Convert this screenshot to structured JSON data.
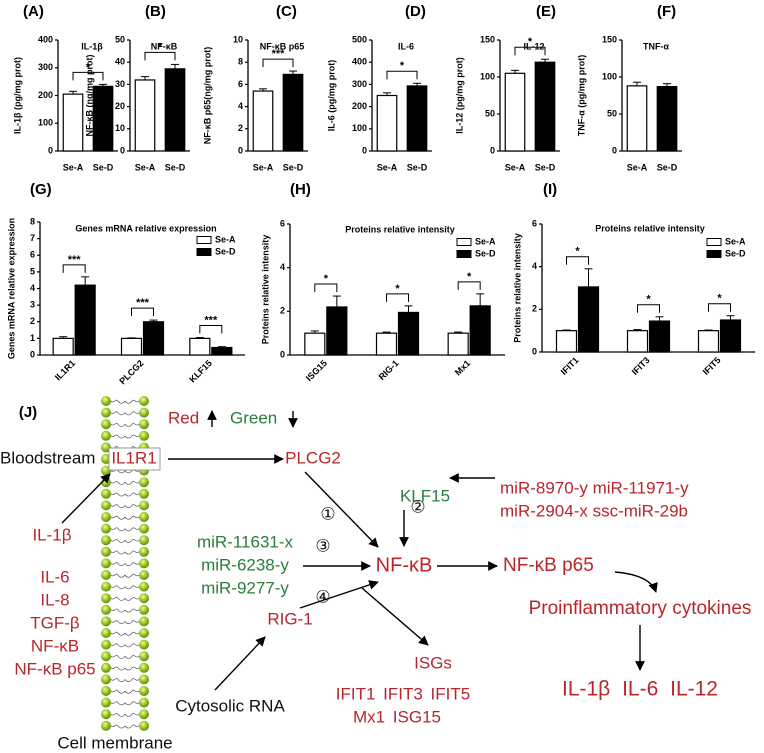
{
  "chart_data": [
    {
      "type": "bar",
      "panel_label": "(A)",
      "title": "IL-1β",
      "y_label": "IL-1β (pg/mg prot)",
      "categories": [
        "Se-A",
        "Se-D"
      ],
      "values": [
        205,
        233
      ],
      "errors": [
        10,
        7
      ],
      "colors": [
        "#ffffff",
        "#000000"
      ],
      "ylim": [
        0,
        400
      ],
      "yticks": [
        0,
        100,
        200,
        300,
        400
      ],
      "significance": "*"
    },
    {
      "type": "bar",
      "panel_label": "(B)",
      "title": "NF-κB",
      "y_label": "NF-κB (ng/mg prot)",
      "categories": [
        "Se-A",
        "Se-D"
      ],
      "values": [
        32,
        37
      ],
      "errors": [
        1.5,
        2
      ],
      "colors": [
        "#ffffff",
        "#000000"
      ],
      "ylim": [
        0,
        50
      ],
      "yticks": [
        0,
        10,
        20,
        30,
        40,
        50
      ],
      "significance": "*"
    },
    {
      "type": "bar",
      "panel_label": "(C)",
      "title": "NF-κB p65",
      "y_label": "NF-κB p65(ng/mg prot)",
      "categories": [
        "Se-A",
        "Se-D"
      ],
      "values": [
        5.4,
        6.9
      ],
      "errors": [
        0.2,
        0.3
      ],
      "colors": [
        "#ffffff",
        "#000000"
      ],
      "ylim": [
        0,
        10
      ],
      "yticks": [
        0,
        2,
        4,
        6,
        8,
        10
      ],
      "significance": "***"
    },
    {
      "type": "bar",
      "panel_label": "(D)",
      "title": "IL-6",
      "y_label": "IL-6 (pg/mg prot)",
      "categories": [
        "Se-A",
        "Se-D"
      ],
      "values": [
        250,
        293
      ],
      "errors": [
        12,
        12
      ],
      "colors": [
        "#ffffff",
        "#000000"
      ],
      "ylim": [
        0,
        500
      ],
      "yticks": [
        0,
        100,
        200,
        300,
        400,
        500
      ],
      "significance": "*"
    },
    {
      "type": "bar",
      "panel_label": "(E)",
      "title": "IL-12",
      "y_label": "IL-12 (pg/mg prot)",
      "categories": [
        "Se-A",
        "Se-D"
      ],
      "values": [
        105,
        120
      ],
      "errors": [
        4,
        4
      ],
      "colors": [
        "#ffffff",
        "#000000"
      ],
      "ylim": [
        0,
        150
      ],
      "yticks": [
        0,
        50,
        100,
        150
      ],
      "significance": "*"
    },
    {
      "type": "bar",
      "panel_label": "(F)",
      "title": "TNF-α",
      "y_label": "TNF-α (pg/mg prot)",
      "categories": [
        "Se-A",
        "Se-D"
      ],
      "values": [
        88,
        87
      ],
      "errors": [
        5,
        4
      ],
      "colors": [
        "#ffffff",
        "#000000"
      ],
      "ylim": [
        0,
        150
      ],
      "yticks": [
        0,
        50,
        100,
        150
      ]
    },
    {
      "type": "grouped_bar",
      "panel_label": "(G)",
      "title": "Genes mRNA relative expression",
      "y_label": "Genes mRNA relative expression",
      "categories": [
        "IL1R1",
        "PLCG2",
        "KLF15"
      ],
      "series": [
        {
          "name": "Se-A",
          "color": "#ffffff",
          "values": [
            1,
            1,
            1
          ],
          "errors": [
            0.1,
            0.03,
            0.05
          ]
        },
        {
          "name": "Se-D",
          "color": "#000000",
          "values": [
            4.2,
            2.0,
            0.45
          ],
          "errors": [
            0.5,
            0.1,
            0.05
          ]
        }
      ],
      "ylim": [
        0,
        8
      ],
      "yticks": [
        0,
        1,
        2,
        3,
        4,
        5,
        6,
        7,
        8
      ],
      "significance": [
        "***",
        "***",
        "***"
      ],
      "legend": "upper right"
    },
    {
      "type": "grouped_bar",
      "panel_label": "(H)",
      "title": "Proteins relative intensity",
      "y_label": "Proteins relative intensity",
      "categories": [
        "ISG15",
        "RIG-1",
        "Mx1"
      ],
      "series": [
        {
          "name": "Se-A",
          "color": "#ffffff",
          "values": [
            1,
            1,
            1
          ],
          "errors": [
            0.1,
            0.05,
            0.05
          ]
        },
        {
          "name": "Se-D",
          "color": "#000000",
          "values": [
            2.2,
            1.95,
            2.25
          ],
          "errors": [
            0.5,
            0.3,
            0.55
          ]
        }
      ],
      "ylim": [
        0,
        6
      ],
      "yticks": [
        0,
        2,
        4,
        6
      ],
      "significance": [
        "*",
        "*",
        "*"
      ],
      "legend": "upper right"
    },
    {
      "type": "grouped_bar",
      "panel_label": "(I)",
      "title": "Proteins relative intensity",
      "y_label": "Proteins relative intensity",
      "categories": [
        "IFIT1",
        "IFIT3",
        "IFIT5"
      ],
      "series": [
        {
          "name": "Se-A",
          "color": "#ffffff",
          "values": [
            1,
            1,
            1
          ],
          "errors": [
            0.03,
            0.05,
            0.03
          ]
        },
        {
          "name": "Se-D",
          "color": "#000000",
          "values": [
            3.05,
            1.45,
            1.5
          ],
          "errors": [
            0.85,
            0.2,
            0.2
          ]
        }
      ],
      "ylim": [
        0,
        6
      ],
      "yticks": [
        0,
        2,
        4,
        6
      ],
      "significance": [
        "*",
        "*",
        "*"
      ],
      "legend": "upper right"
    }
  ],
  "diagram": {
    "panel_label": "(J)",
    "legend_up": "Red",
    "legend_down": "Green",
    "bloodstream": "Bloodstream",
    "receptor": "IL1R1",
    "plcg2": "PLCG2",
    "klf15": "KLF15",
    "mirnas_up": [
      "miR-8970-y miR-11971-y",
      "miR-2904-x ssc-miR-29b"
    ],
    "ligand": "IL-1β",
    "factors": [
      "IL-6",
      "IL-8",
      "TGF-β",
      "NF-κB",
      "NF-κB p65"
    ],
    "mirnas_down": [
      "miR-11631-x",
      "miR-6238-y",
      "miR-9277-y"
    ],
    "steps": [
      "①",
      "②",
      "③",
      "④"
    ],
    "nfkb": "NF-κB",
    "nfkb_p65": "NF-κB p65",
    "cytokines": "Proinflammatory cytokines",
    "rig1": "RIG-1",
    "isgs": "ISGs",
    "isg_list": [
      "IFIT1 IFIT3 IFIT5",
      "Mx1 ISG15"
    ],
    "cytokine_list": "IL-1β IL-6 IL-12",
    "cytosolic": "Cytosolic RNA",
    "membrane": "Cell membrane"
  }
}
